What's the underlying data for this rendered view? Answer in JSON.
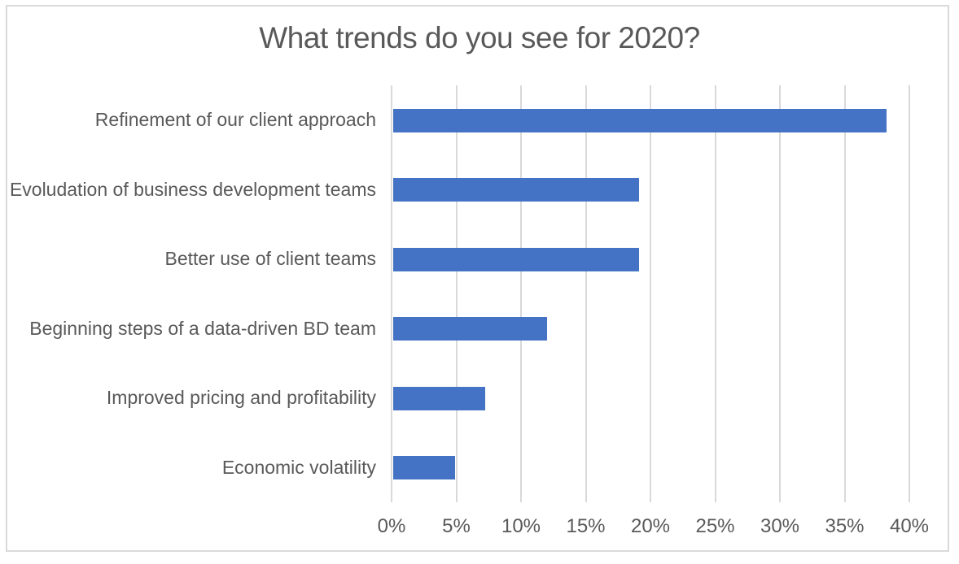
{
  "window": {
    "background": "#ffffff",
    "border_color": "#d9d9d9"
  },
  "chart_data": {
    "type": "bar",
    "orientation": "horizontal",
    "title": "What trends do you see for 2020?",
    "categories": [
      "Refinement of our client approach",
      "Evoludation of business development teams",
      "Better use of client teams",
      "Beginning steps of a data-driven BD team",
      "Improved pricing and profitability",
      "Economic volatility"
    ],
    "values": [
      38.1,
      19.0,
      19.0,
      11.9,
      7.1,
      4.8
    ],
    "value_suffix": "%",
    "xlim": [
      0,
      40
    ],
    "x_tick_values": [
      0,
      5,
      10,
      15,
      20,
      25,
      30,
      35,
      40
    ],
    "x_tick_labels": [
      "0%",
      "5%",
      "10%",
      "15%",
      "20%",
      "25%",
      "30%",
      "35%",
      "40%"
    ],
    "xlabel": "",
    "ylabel": "",
    "bar_color": "#4472c4",
    "gridline_color": "#d9d9d9",
    "text_color": "#595959",
    "grid": "vertical-only",
    "legend": "none"
  }
}
